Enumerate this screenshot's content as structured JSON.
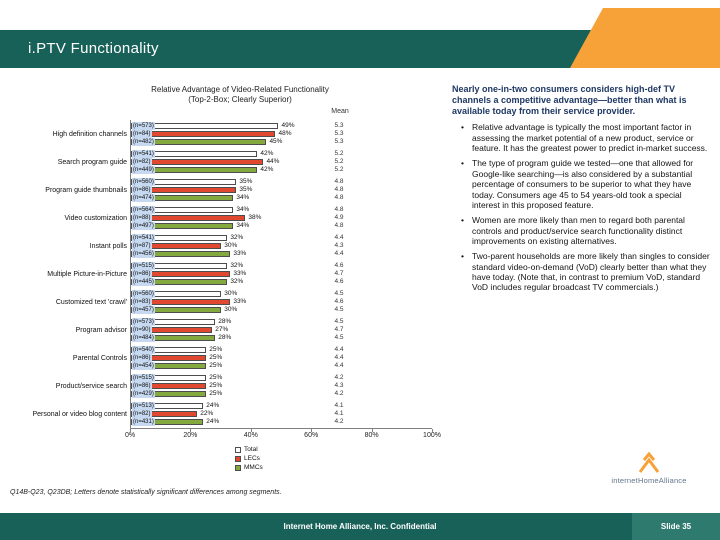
{
  "colors": {
    "teal": "#186158",
    "teal-light": "#2f7a6e",
    "orange": "#f7a239",
    "label-bg": "#c6d9f0",
    "heading": "#1f3864"
  },
  "header": {
    "title": "i.PTV Functionality"
  },
  "chart_data": {
    "type": "bar",
    "orientation": "horizontal",
    "title_line1": "Relative Advantage of Video-Related Functionality",
    "title_line2": "(Top-2-Box; Clearly Superior)",
    "mean_header": "Mean",
    "xlim": [
      0,
      100
    ],
    "x_ticks": [
      "0%",
      "20%",
      "40%",
      "60%",
      "80%",
      "100%"
    ],
    "legend_position": "bottom",
    "categories": [
      "High definition channels",
      "Search program guide",
      "Program guide thumbnails",
      "Video customization",
      "Instant polls",
      "Multiple Picture-in-Picture",
      "Customized text 'crawl'",
      "Program advisor",
      "Parental Controls",
      "Product/service search",
      "Personal or video blog content"
    ],
    "series": [
      {
        "name": "Total",
        "color": "#ffffff",
        "values": [
          49,
          42,
          35,
          34,
          32,
          32,
          30,
          28,
          25,
          25,
          24
        ],
        "n": [
          573,
          541,
          560,
          564,
          541,
          515,
          560,
          573,
          540,
          515,
          513
        ],
        "means": [
          5.3,
          5.2,
          4.8,
          4.8,
          4.4,
          4.6,
          4.5,
          4.5,
          4.4,
          4.2,
          4.1
        ]
      },
      {
        "name": "LECs",
        "color": "#e0492f",
        "values": [
          48,
          44,
          35,
          38,
          30,
          33,
          33,
          27,
          25,
          25,
          22
        ],
        "n": [
          84,
          82,
          86,
          88,
          87,
          86,
          83,
          90,
          86,
          86,
          82
        ],
        "means": [
          5.3,
          5.2,
          4.8,
          4.9,
          4.3,
          4.7,
          4.6,
          4.7,
          4.4,
          4.3,
          4.1
        ]
      },
      {
        "name": "MMCs",
        "color": "#84a93f",
        "values": [
          45,
          42,
          34,
          34,
          33,
          32,
          30,
          28,
          25,
          25,
          24
        ],
        "n": [
          482,
          449,
          474,
          497,
          456,
          445,
          457,
          484,
          454,
          429,
          431
        ],
        "means": [
          5.3,
          5.2,
          4.8,
          4.8,
          4.4,
          4.6,
          4.5,
          4.5,
          4.4,
          4.2,
          4.2
        ]
      }
    ]
  },
  "right_panel": {
    "heading": "Nearly one-in-two consumers considers high-def TV channels a competitive advantage—better than what is available today from their service provider.",
    "bullets": [
      "Relative advantage is typically the most important factor in assessing the market potential of a new product, service or feature. It has the greatest power to predict in-market success.",
      "The type of program guide we tested—one that allowed for Google-like searching—is also considered by a substantial percentage of consumers to be superior to what they have today. Consumers age 45 to 54 years-old took a special interest in this proposed feature.",
      "Women are more likely than men to regard both parental controls and product/service search functionality distinct improvements on existing alternatives.",
      "Two-parent households are more likely than singles to consider standard video-on-demand (VoD) clearly better than what they have today. (Note that, in contrast to premium VoD, standard VoD includes regular broadcast TV commercials.)"
    ]
  },
  "footnote": {
    "text": "Q14B-Q23, Q23DB; Letters denote statistically significant differences among segments."
  },
  "footer": {
    "confidential": "Internet Home Alliance, Inc. Confidential",
    "slide_label": "Slide 35"
  },
  "logo": {
    "text": "internetHomeAlliance"
  }
}
